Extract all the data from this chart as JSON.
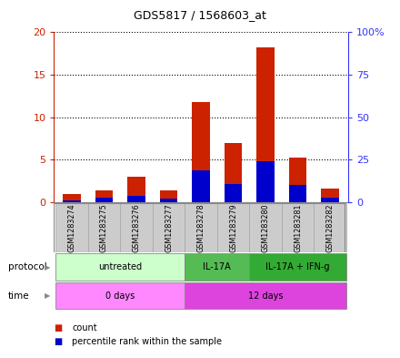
{
  "title": "GDS5817 / 1568603_at",
  "samples": [
    "GSM1283274",
    "GSM1283275",
    "GSM1283276",
    "GSM1283277",
    "GSM1283278",
    "GSM1283279",
    "GSM1283280",
    "GSM1283281",
    "GSM1283282"
  ],
  "count_values": [
    1.0,
    1.4,
    3.0,
    1.4,
    11.8,
    7.0,
    18.2,
    5.3,
    1.6
  ],
  "percentile_values": [
    1.0,
    2.5,
    4.0,
    2.0,
    19.0,
    11.0,
    24.0,
    10.0,
    2.5
  ],
  "ylim_left": [
    0,
    20
  ],
  "ylim_right": [
    0,
    100
  ],
  "yticks_left": [
    0,
    5,
    10,
    15,
    20
  ],
  "yticks_right": [
    0,
    25,
    50,
    75,
    100
  ],
  "ytick_labels_left": [
    "0",
    "5",
    "10",
    "15",
    "20"
  ],
  "ytick_labels_right": [
    "0",
    "25",
    "75",
    "100%"
  ],
  "ytick_vals_right_display": [
    0,
    25,
    75,
    100
  ],
  "protocol_groups": [
    {
      "label": "untreated",
      "start": 0,
      "end": 4,
      "color": "#ccffcc"
    },
    {
      "label": "IL-17A",
      "start": 4,
      "end": 6,
      "color": "#55bb55"
    },
    {
      "label": "IL-17A + IFN-g",
      "start": 6,
      "end": 9,
      "color": "#33aa33"
    }
  ],
  "time_groups": [
    {
      "label": "0 days",
      "start": 0,
      "end": 4,
      "color": "#ff88ff"
    },
    {
      "label": "12 days",
      "start": 4,
      "end": 9,
      "color": "#dd44dd"
    }
  ],
  "bar_color_red": "#cc2200",
  "bar_color_blue": "#0000cc",
  "bar_width": 0.55,
  "grid_color": "#000000",
  "bg_color": "#ffffff",
  "plot_bg_color": "#ffffff",
  "left_tick_color": "#cc2200",
  "right_tick_color": "#3333ff",
  "legend_count_label": "count",
  "legend_percentile_label": "percentile rank within the sample",
  "sample_box_color": "#cccccc",
  "protocol_label": "protocol",
  "time_label": "time"
}
